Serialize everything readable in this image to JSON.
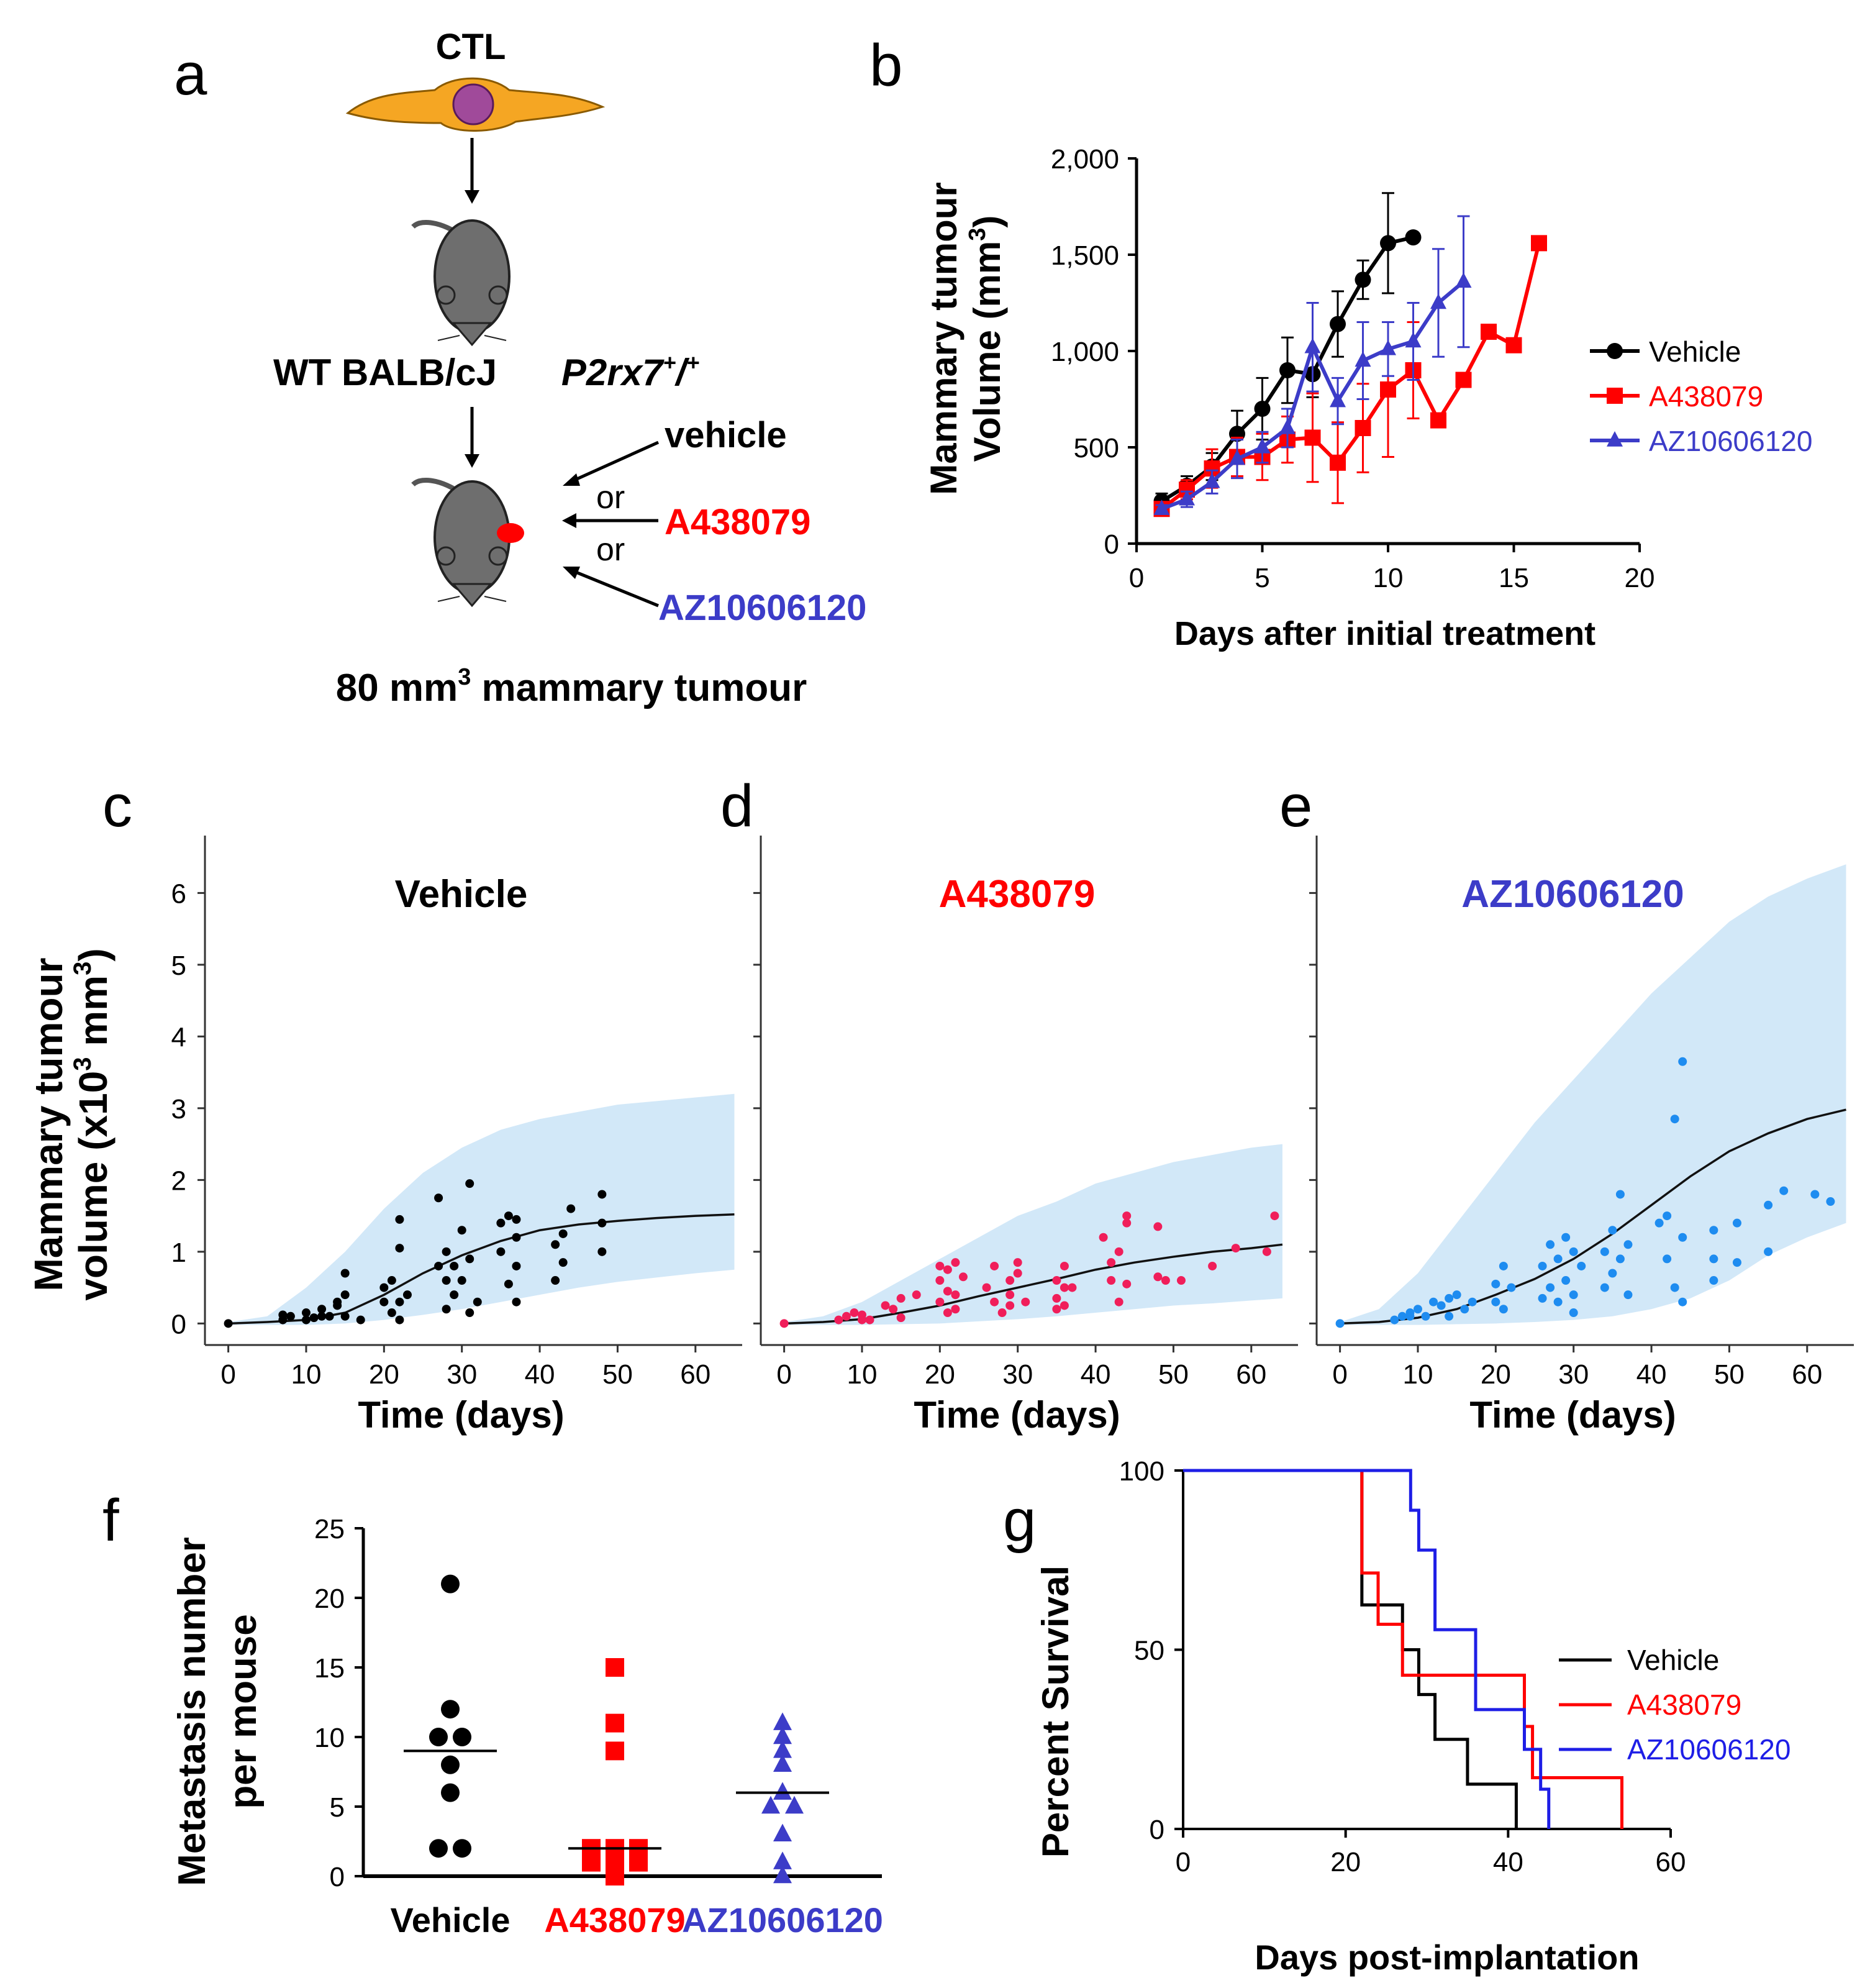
{
  "colors": {
    "black": "#000000",
    "red": "#ff0000",
    "blue": "#3c3cc8",
    "blue_e": "#1e8cf0",
    "red_d": "#f01e5a",
    "band": "#d2e8f8",
    "mouse": "#6e6e6e",
    "cell": "#f5a623",
    "nucleus": "#a04a9a"
  },
  "panel_labels": {
    "a": "a",
    "b": "b",
    "c": "c",
    "d": "d",
    "e": "e",
    "f": "f",
    "g": "g"
  },
  "schematic": {
    "ctl": "CTL",
    "strain": "WT BALB/cJ",
    "genotype": "P2rx7",
    "genotype_sup": "+",
    "genotype_slash": "/",
    "genotype_sup2": "+",
    "vehicle": "vehicle",
    "or1": "or",
    "or2": "or",
    "drug1": "A438079",
    "drug2": "AZ10606120",
    "caption_pre": "80 mm",
    "caption_sup": "3",
    "caption_post": " mammary tumour"
  },
  "chart_data": [
    {
      "panel": "b",
      "type": "line",
      "title": "",
      "xlabel": "Days after initial treatment",
      "ylabel_line1": "Mammary tumour",
      "ylabel_line2_pre": "Volume (mm",
      "ylabel_line2_sup": "3",
      "ylabel_line2_post": ")",
      "xlim": [
        0,
        20
      ],
      "ylim": [
        0,
        2000
      ],
      "xticks": [
        0,
        5,
        10,
        15,
        20
      ],
      "yticks": [
        0,
        500,
        1000,
        1500,
        2000
      ],
      "ytick_labels": [
        "0",
        "500",
        "1,000",
        "1,500",
        "2,000"
      ],
      "legend_position": "right",
      "series": [
        {
          "name": "Vehicle",
          "color": "#000000",
          "marker": "circle",
          "x": [
            1,
            2,
            3,
            4,
            5,
            6,
            7,
            8,
            9,
            10,
            11
          ],
          "y": [
            220,
            300,
            400,
            570,
            700,
            900,
            880,
            1140,
            1370,
            1560,
            1590
          ],
          "err": [
            40,
            50,
            70,
            120,
            160,
            170,
            120,
            170,
            100,
            260,
            0
          ]
        },
        {
          "name": "A438079",
          "color": "#ff0000",
          "marker": "square",
          "x": [
            1,
            2,
            3,
            4,
            5,
            6,
            7,
            8,
            9,
            10,
            11,
            12,
            13,
            14,
            15,
            16
          ],
          "y": [
            180,
            280,
            390,
            450,
            450,
            540,
            550,
            420,
            600,
            800,
            900,
            640,
            850,
            1100,
            1030,
            1560
          ],
          "err": [
            30,
            50,
            100,
            100,
            120,
            120,
            230,
            210,
            230,
            350,
            250,
            0,
            0,
            0,
            0,
            30
          ]
        },
        {
          "name": "AZ10606120",
          "color": "#3c3cc8",
          "marker": "triangle",
          "x": [
            1,
            2,
            3,
            4,
            5,
            6,
            7,
            8,
            9,
            10,
            11,
            12,
            13
          ],
          "y": [
            180,
            230,
            320,
            440,
            500,
            600,
            1020,
            740,
            950,
            1010,
            1050,
            1250,
            1360
          ],
          "err": [
            20,
            40,
            60,
            100,
            80,
            100,
            230,
            120,
            200,
            140,
            200,
            280,
            340
          ]
        }
      ]
    },
    {
      "panel": "c",
      "type": "scatter",
      "title": "Vehicle",
      "title_color": "#000000",
      "point_color": "#000000",
      "xlabel": "Time (days)",
      "ylabel_line1": "Mammary tumour",
      "ylabel_line2_pre": "volume (x10",
      "ylabel_line2_sup": "3",
      "ylabel_line2_post": " mm",
      "ylabel_line2_sup2": "3",
      "ylabel_line2_end": ")",
      "xlim": [
        -3,
        66
      ],
      "ylim": [
        -0.3,
        6.8
      ],
      "xticks": [
        0,
        10,
        20,
        30,
        40,
        50,
        60
      ],
      "yticks": [
        0,
        1,
        2,
        3,
        4,
        5,
        6
      ],
      "curve": {
        "x": [
          0,
          5,
          10,
          15,
          20,
          25,
          30,
          35,
          40,
          45,
          50,
          55,
          60,
          65
        ],
        "y": [
          0,
          0.02,
          0.05,
          0.15,
          0.4,
          0.7,
          0.95,
          1.15,
          1.3,
          1.38,
          1.43,
          1.47,
          1.5,
          1.52
        ]
      },
      "band": {
        "x": [
          0,
          5,
          10,
          15,
          20,
          25,
          30,
          35,
          40,
          45,
          50,
          55,
          60,
          65
        ],
        "upper": [
          0.02,
          0.1,
          0.5,
          1.0,
          1.6,
          2.1,
          2.45,
          2.7,
          2.85,
          2.95,
          3.05,
          3.1,
          3.15,
          3.2
        ],
        "lower": [
          -0.02,
          -0.02,
          -0.02,
          0,
          0.05,
          0.12,
          0.2,
          0.3,
          0.4,
          0.5,
          0.58,
          0.64,
          0.7,
          0.75
        ]
      },
      "points": {
        "x": [
          0,
          7,
          7,
          8,
          10,
          10,
          11,
          12,
          12,
          13,
          14,
          14,
          15,
          15,
          15,
          17,
          20,
          20,
          21,
          21,
          22,
          22,
          22,
          22,
          23,
          27,
          27,
          28,
          28,
          28,
          29,
          29,
          30,
          30,
          31,
          31,
          31,
          32,
          35,
          35,
          36,
          36,
          37,
          37,
          37,
          37,
          42,
          42,
          43,
          43,
          44,
          48,
          48,
          48
        ],
        "y": [
          0,
          0.05,
          0.12,
          0.1,
          0.05,
          0.15,
          0.08,
          0.1,
          0.2,
          0.1,
          0.3,
          0.25,
          0.4,
          0.7,
          0.1,
          0.05,
          0.3,
          0.5,
          0.15,
          0.6,
          0.3,
          1.05,
          1.45,
          0.05,
          0.4,
          0.8,
          1.75,
          0.6,
          1.0,
          0.2,
          0.4,
          0.8,
          0.6,
          1.3,
          1.95,
          0.9,
          0.15,
          0.3,
          1.4,
          1.0,
          0.55,
          1.5,
          1.2,
          0.8,
          1.45,
          0.3,
          1.1,
          0.6,
          0.85,
          1.25,
          1.6,
          1.8,
          1.4,
          1.0
        ]
      }
    },
    {
      "panel": "d",
      "type": "scatter",
      "title": "A438079",
      "title_color": "#ff0000",
      "point_color": "#f01e5a",
      "xlabel": "Time (days)",
      "xlim": [
        -3,
        66
      ],
      "ylim": [
        -0.3,
        6.8
      ],
      "xticks": [
        0,
        10,
        20,
        30,
        40,
        50,
        60
      ],
      "yticks": [
        0,
        1,
        2,
        3,
        4,
        5,
        6
      ],
      "curve": {
        "x": [
          0,
          5,
          10,
          15,
          20,
          25,
          30,
          35,
          40,
          45,
          50,
          55,
          60,
          64
        ],
        "y": [
          0,
          0.02,
          0.06,
          0.15,
          0.25,
          0.38,
          0.5,
          0.62,
          0.75,
          0.85,
          0.93,
          1.0,
          1.05,
          1.1
        ]
      },
      "band": {
        "x": [
          0,
          5,
          10,
          15,
          20,
          25,
          30,
          35,
          40,
          45,
          50,
          55,
          60,
          64
        ],
        "upper": [
          0.02,
          0.1,
          0.3,
          0.6,
          0.9,
          1.2,
          1.5,
          1.7,
          1.95,
          2.1,
          2.25,
          2.35,
          2.45,
          2.5
        ],
        "lower": [
          -0.02,
          -0.02,
          -0.02,
          -0.01,
          0,
          0.03,
          0.06,
          0.1,
          0.15,
          0.2,
          0.25,
          0.28,
          0.32,
          0.35
        ]
      },
      "points": {
        "x": [
          0,
          7,
          8,
          9,
          10,
          10,
          11,
          13,
          14,
          15,
          15,
          17,
          20,
          20,
          20,
          21,
          21,
          21,
          22,
          22,
          22,
          23,
          26,
          27,
          27,
          28,
          29,
          29,
          29,
          30,
          30,
          31,
          35,
          35,
          35,
          36,
          36,
          36,
          37,
          41,
          42,
          42,
          43,
          43,
          44,
          44,
          44,
          48,
          48,
          49,
          51,
          55,
          58,
          62,
          63
        ],
        "y": [
          0,
          0.05,
          0.1,
          0.15,
          0.05,
          0.12,
          0.05,
          0.25,
          0.2,
          0.35,
          0.08,
          0.4,
          0.6,
          0.3,
          0.8,
          0.75,
          0.15,
          0.45,
          0.85,
          0.4,
          0.2,
          0.65,
          0.5,
          0.3,
          0.8,
          0.15,
          0.6,
          0.4,
          0.25,
          0.85,
          0.7,
          0.3,
          0.6,
          0.35,
          0.2,
          0.8,
          0.5,
          0.25,
          0.5,
          1.2,
          0.85,
          0.6,
          1.0,
          0.3,
          1.4,
          1.5,
          0.55,
          1.35,
          0.65,
          0.6,
          0.6,
          0.8,
          1.05,
          1.0,
          1.5
        ]
      }
    },
    {
      "panel": "e",
      "type": "scatter",
      "title": "AZ10606120",
      "title_color": "#3c3cc8",
      "point_color": "#1e8cf0",
      "xlabel": "Time (days)",
      "xlim": [
        -3,
        66
      ],
      "ylim": [
        -0.3,
        6.8
      ],
      "xticks": [
        0,
        10,
        20,
        30,
        40,
        50,
        60
      ],
      "yticks": [
        0,
        1,
        2,
        3,
        4,
        5,
        6
      ],
      "curve": {
        "x": [
          0,
          5,
          10,
          15,
          20,
          25,
          30,
          35,
          40,
          45,
          50,
          55,
          60,
          65
        ],
        "y": [
          0,
          0.02,
          0.08,
          0.2,
          0.4,
          0.62,
          0.9,
          1.25,
          1.65,
          2.05,
          2.4,
          2.65,
          2.85,
          2.98
        ]
      },
      "band": {
        "x": [
          0,
          5,
          10,
          15,
          20,
          25,
          30,
          35,
          40,
          45,
          50,
          55,
          60,
          65
        ],
        "upper": [
          0.02,
          0.2,
          0.7,
          1.4,
          2.1,
          2.8,
          3.4,
          4.0,
          4.6,
          5.1,
          5.6,
          5.95,
          6.2,
          6.4
        ],
        "lower": [
          -0.02,
          -0.02,
          -0.02,
          -0.01,
          0,
          0.02,
          0.05,
          0.1,
          0.2,
          0.35,
          0.6,
          0.95,
          1.2,
          1.4
        ]
      },
      "points": {
        "x": [
          0,
          7,
          8,
          9,
          9,
          10,
          11,
          12,
          13,
          14,
          14,
          15,
          16,
          17,
          20,
          20,
          21,
          21,
          22,
          26,
          26,
          27,
          27,
          28,
          28,
          29,
          29,
          30,
          30,
          30,
          31,
          34,
          34,
          35,
          35,
          36,
          36,
          37,
          37,
          41,
          42,
          42,
          43,
          43,
          44,
          44,
          44,
          48,
          48,
          48,
          51,
          51,
          55,
          55,
          57,
          61,
          63
        ],
        "y": [
          0,
          0.05,
          0.1,
          0.1,
          0.15,
          0.2,
          0.1,
          0.3,
          0.25,
          0.35,
          0.1,
          0.4,
          0.2,
          0.3,
          0.55,
          0.3,
          0.8,
          0.2,
          0.5,
          0.35,
          0.8,
          1.1,
          0.5,
          0.9,
          0.3,
          1.2,
          0.6,
          1.0,
          0.4,
          0.15,
          0.8,
          1.0,
          0.5,
          1.3,
          0.7,
          1.8,
          0.9,
          0.4,
          1.1,
          1.4,
          1.5,
          0.9,
          2.85,
          0.5,
          3.65,
          1.2,
          0.3,
          1.3,
          0.6,
          0.9,
          1.4,
          0.85,
          1.65,
          1.0,
          1.85,
          1.8,
          1.7
        ]
      }
    },
    {
      "panel": "f",
      "type": "scatter",
      "title": "",
      "xlabel": "",
      "ylabel_line1": "Metastasis number",
      "ylabel_line2": "per mouse",
      "ylim": [
        0,
        25
      ],
      "yticks": [
        0,
        5,
        10,
        15,
        20,
        25
      ],
      "categories": [
        "Vehicle",
        "A438079",
        "AZ10606120"
      ],
      "category_colors": [
        "#000000",
        "#ff0000",
        "#3c3cc8"
      ],
      "series": [
        {
          "name": "Vehicle",
          "marker": "circle",
          "color": "#000000",
          "values": [
            21,
            12,
            10,
            10,
            8,
            6,
            2,
            2
          ],
          "median": 9
        },
        {
          "name": "A438079",
          "marker": "square",
          "color": "#ff0000",
          "values": [
            15,
            11,
            9,
            2,
            2,
            2,
            1,
            1,
            1,
            0
          ],
          "median": 2
        },
        {
          "name": "AZ10606120",
          "marker": "triangle",
          "color": "#3c3cc8",
          "values": [
            11,
            10,
            9,
            8,
            6,
            5,
            5,
            3,
            1,
            0
          ],
          "median": 6
        }
      ]
    },
    {
      "panel": "g",
      "type": "line",
      "title": "",
      "xlabel": "Days post-implantation",
      "ylabel": "Percent Survival",
      "xlim": [
        0,
        60
      ],
      "ylim": [
        0,
        100
      ],
      "xticks": [
        0,
        20,
        40,
        60
      ],
      "yticks": [
        0,
        50,
        100
      ],
      "legend_position": "right",
      "series": [
        {
          "name": "Vehicle",
          "color": "#000000",
          "x": [
            0,
            22,
            22,
            24,
            24,
            27,
            27,
            29,
            29,
            31,
            31,
            35,
            35,
            38,
            38,
            41,
            41
          ],
          "y": [
            100,
            100,
            62.5,
            62.5,
            62.5,
            62.5,
            50,
            50,
            37.5,
            37.5,
            25,
            25,
            12.5,
            12.5,
            12.5,
            12.5,
            0
          ]
        },
        {
          "name": "A438079",
          "color": "#ff0000",
          "x": [
            0,
            22,
            22,
            24,
            24,
            27,
            27,
            42,
            42,
            43,
            43,
            54,
            54
          ],
          "y": [
            100,
            100,
            71.4,
            71.4,
            57.1,
            57.1,
            42.9,
            42.9,
            28.6,
            28.6,
            14.3,
            14.3,
            0
          ]
        },
        {
          "name": "AZ10606120",
          "color": "#1e1ee6",
          "x": [
            0,
            28,
            28,
            29,
            29,
            31,
            31,
            36,
            36,
            42,
            42,
            44,
            44,
            45,
            45
          ],
          "y": [
            100,
            100,
            88.9,
            88.9,
            77.8,
            77.8,
            55.6,
            55.6,
            33.3,
            33.3,
            22.2,
            22.2,
            11.1,
            11.1,
            0
          ]
        }
      ]
    }
  ]
}
